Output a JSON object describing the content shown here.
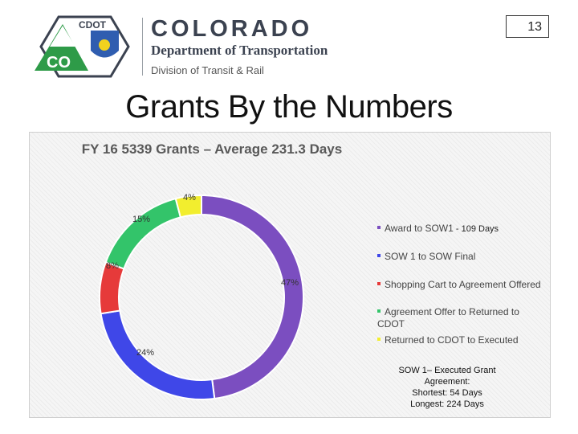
{
  "slide": {
    "page_number": "13",
    "title": "Grants By the Numbers"
  },
  "logo": {
    "badge_text": "CDOT",
    "badge_letters": "CO",
    "brand_name": "COLORADO",
    "department": "Department of Transportation",
    "division": "Division of Transit & Rail"
  },
  "colors": {
    "purple": "#7b4ec0",
    "blue": "#3f47e8",
    "red": "#e63a3a",
    "green": "#33c46a",
    "yellow": "#f2ee2e",
    "cdot_green": "#2e9b48"
  },
  "chart_data": {
    "type": "pie",
    "title": "FY 16 5339 Grants – Average 231.3 Days",
    "donut": true,
    "series": [
      {
        "name": "Award to SOW1",
        "value": 47,
        "label": "47%",
        "color": "#7b4ec0"
      },
      {
        "name": "SOW 1 to SOW Final",
        "value": 24,
        "label": "24%",
        "color": "#3f47e8"
      },
      {
        "name": "Shopping Cart to Agreement Offered",
        "value": 8,
        "label": "8%",
        "color": "#e63a3a"
      },
      {
        "name": "Agreement Offer to Returned to CDOT",
        "value": 15,
        "label": "15%",
        "color": "#33c46a"
      },
      {
        "name": "Returned to CDOT to Executed",
        "value": 4,
        "label": "4%",
        "color": "#f2ee2e"
      }
    ],
    "legend_extra": "- 109 Days",
    "legend_position": "right",
    "note_lines": [
      "SOW 1– Executed Grant Agreement:",
      "Shortest: 54 Days",
      "Longest: 224 Days"
    ]
  }
}
